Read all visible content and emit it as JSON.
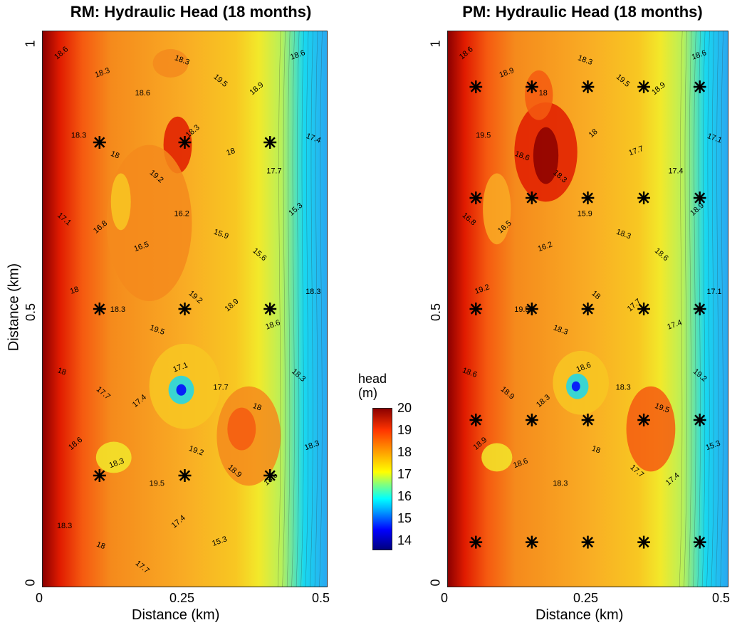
{
  "colors": {
    "dark_red": "#8b0000",
    "red": "#e01b00",
    "orange_red": "#f55a10",
    "orange": "#f58a1c",
    "light_orange": "#f9ac24",
    "gold": "#f8c722",
    "yellow": "#f2e92a",
    "yellow_green": "#b8f05a",
    "cyan": "#18d8f0",
    "blue": "#0000ff",
    "marker": "#000000"
  },
  "colorbar": {
    "title_line1": "head",
    "title_line2": "(m)",
    "ticks": [
      "20",
      "19",
      "18",
      "17",
      "16",
      "15",
      "14"
    ]
  },
  "chart_data": [
    {
      "type": "heatmap",
      "title": "RM: Hydraulic Head (18 months)",
      "xlabel": "Distance (km)",
      "ylabel": "Distance (km)",
      "xlim": [
        0,
        0.5
      ],
      "ylim": [
        0,
        1
      ],
      "xticks": [
        "0",
        "0.25",
        "0.5"
      ],
      "yticks": [
        "0",
        "0.5",
        "1"
      ],
      "zlim": [
        13.6,
        20
      ],
      "contour_labels": [
        "18.6",
        "18.3",
        "18.6",
        "18.3",
        "19.5",
        "18.9",
        "18.6",
        "18.3",
        "18",
        "19.2",
        "18.3",
        "18",
        "17.7",
        "17.4",
        "17.1",
        "16.8",
        "16.5",
        "16.2",
        "15.9",
        "15.6",
        "15.3",
        "18",
        "18.3",
        "19.5",
        "19.2",
        "18.9",
        "18.6",
        "18.3",
        "18",
        "17.7",
        "17.4",
        "17.1",
        "17.7",
        "18",
        "18.3",
        "18.6",
        "18.3",
        "19.5",
        "19.2",
        "18.9",
        "18.6",
        "18.3",
        "18.3",
        "18",
        "17.7",
        "17.4",
        "15.3"
      ],
      "wells": [
        {
          "x": 0.1,
          "y": 0.8
        },
        {
          "x": 0.25,
          "y": 0.8
        },
        {
          "x": 0.4,
          "y": 0.8
        },
        {
          "x": 0.1,
          "y": 0.5
        },
        {
          "x": 0.25,
          "y": 0.5
        },
        {
          "x": 0.4,
          "y": 0.5
        },
        {
          "x": 0.1,
          "y": 0.2
        },
        {
          "x": 0.25,
          "y": 0.2
        },
        {
          "x": 0.4,
          "y": 0.2
        }
      ]
    },
    {
      "type": "heatmap",
      "title": "PM: Hydraulic Head (18 months)",
      "xlabel": "Distance (km)",
      "ylabel": "",
      "xlim": [
        0,
        0.5
      ],
      "ylim": [
        0,
        1
      ],
      "xticks": [
        "0",
        "0.25",
        "0.5"
      ],
      "yticks": [
        "0",
        "0.5",
        "1"
      ],
      "zlim": [
        13.6,
        20
      ],
      "contour_labels": [
        "18.6",
        "18.9",
        "18",
        "18.3",
        "19.5",
        "18.9",
        "18.6",
        "19.5",
        "18.6",
        "18.3",
        "18",
        "17.7",
        "17.4",
        "17.1",
        "16.8",
        "16.5",
        "16.2",
        "15.9",
        "18.3",
        "18.6",
        "18.9",
        "19.2",
        "19.5",
        "18.3",
        "18",
        "17.7",
        "17.4",
        "17.1",
        "18.6",
        "18.9",
        "18.3",
        "18.6",
        "18.3",
        "19.5",
        "19.2",
        "18.9",
        "18.6",
        "18.3",
        "18",
        "17.7",
        "17.4",
        "15.3"
      ],
      "wells": [
        {
          "x": 0.05,
          "y": 0.9
        },
        {
          "x": 0.15,
          "y": 0.9
        },
        {
          "x": 0.25,
          "y": 0.9
        },
        {
          "x": 0.35,
          "y": 0.9
        },
        {
          "x": 0.45,
          "y": 0.9
        },
        {
          "x": 0.05,
          "y": 0.7
        },
        {
          "x": 0.15,
          "y": 0.7
        },
        {
          "x": 0.25,
          "y": 0.7
        },
        {
          "x": 0.35,
          "y": 0.7
        },
        {
          "x": 0.45,
          "y": 0.7
        },
        {
          "x": 0.05,
          "y": 0.5
        },
        {
          "x": 0.15,
          "y": 0.5
        },
        {
          "x": 0.25,
          "y": 0.5
        },
        {
          "x": 0.35,
          "y": 0.5
        },
        {
          "x": 0.45,
          "y": 0.5
        },
        {
          "x": 0.05,
          "y": 0.3
        },
        {
          "x": 0.15,
          "y": 0.3
        },
        {
          "x": 0.25,
          "y": 0.3
        },
        {
          "x": 0.35,
          "y": 0.3
        },
        {
          "x": 0.45,
          "y": 0.3
        },
        {
          "x": 0.05,
          "y": 0.08
        },
        {
          "x": 0.15,
          "y": 0.08
        },
        {
          "x": 0.25,
          "y": 0.08
        },
        {
          "x": 0.35,
          "y": 0.08
        },
        {
          "x": 0.45,
          "y": 0.08
        }
      ]
    }
  ]
}
